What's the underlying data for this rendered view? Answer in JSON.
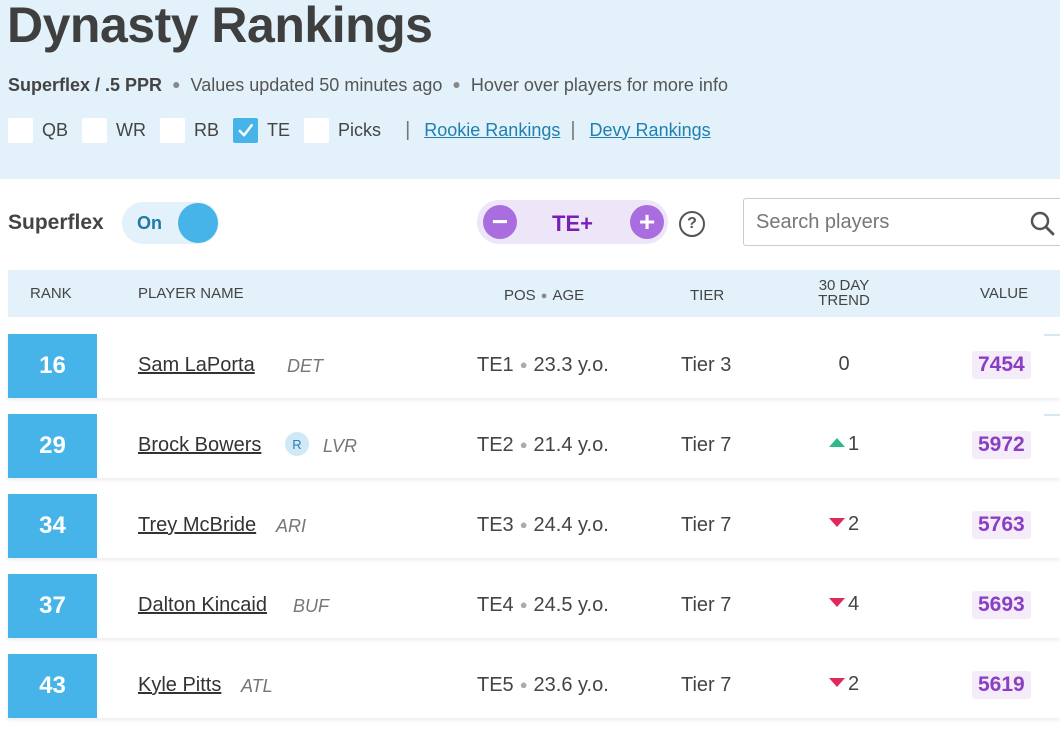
{
  "header": {
    "title": "Dynasty Rankings",
    "format": "Superflex / .5 PPR",
    "updated": "Values updated 50 minutes ago",
    "hover_hint": "Hover over players for more info"
  },
  "filters": {
    "positions": [
      {
        "label": "QB",
        "checked": false
      },
      {
        "label": "WR",
        "checked": false
      },
      {
        "label": "RB",
        "checked": false
      },
      {
        "label": "TE",
        "checked": true
      },
      {
        "label": "Picks",
        "checked": false
      }
    ],
    "links": [
      "Rookie Rankings",
      "Devy Rankings"
    ]
  },
  "controls": {
    "superflex_label": "Superflex",
    "toggle_state": "On",
    "te_label": "TE+",
    "minus": "−",
    "plus": "+",
    "help": "?",
    "search_placeholder": "Search players"
  },
  "table": {
    "headers": {
      "rank": "RANK",
      "name": "PLAYER NAME",
      "pos": "POS",
      "age": "AGE",
      "tier": "TIER",
      "trend_line1": "30 DAY",
      "trend_line2": "TREND",
      "value": "VALUE"
    },
    "rows": [
      {
        "rank": "16",
        "name": "Sam LaPorta",
        "team": "DET",
        "rookie": "",
        "pos": "TE1",
        "age": "23.3 y.o.",
        "tier": "Tier 3",
        "trend": "0",
        "trend_dir": "none",
        "value": "7454"
      },
      {
        "rank": "29",
        "name": "Brock Bowers",
        "team": "LVR",
        "rookie": "R",
        "pos": "TE2",
        "age": "21.4 y.o.",
        "tier": "Tier 7",
        "trend": "1",
        "trend_dir": "up",
        "value": "5972"
      },
      {
        "rank": "34",
        "name": "Trey McBride",
        "team": "ARI",
        "rookie": "",
        "pos": "TE3",
        "age": "24.4 y.o.",
        "tier": "Tier 7",
        "trend": "2",
        "trend_dir": "down",
        "value": "5763"
      },
      {
        "rank": "37",
        "name": "Dalton Kincaid",
        "team": "BUF",
        "rookie": "",
        "pos": "TE4",
        "age": "24.5 y.o.",
        "tier": "Tier 7",
        "trend": "4",
        "trend_dir": "down",
        "value": "5693"
      },
      {
        "rank": "43",
        "name": "Kyle Pitts",
        "team": "ATL",
        "rookie": "",
        "pos": "TE5",
        "age": "23.6 y.o.",
        "tier": "Tier 7",
        "trend": "2",
        "trend_dir": "down",
        "value": "5619"
      }
    ]
  },
  "colors": {
    "accent_blue": "#46b4e8",
    "header_bg": "#e3f2fa",
    "value_purple": "#8a3fc2",
    "trend_up": "#2fb88a",
    "trend_down": "#e0285a"
  }
}
